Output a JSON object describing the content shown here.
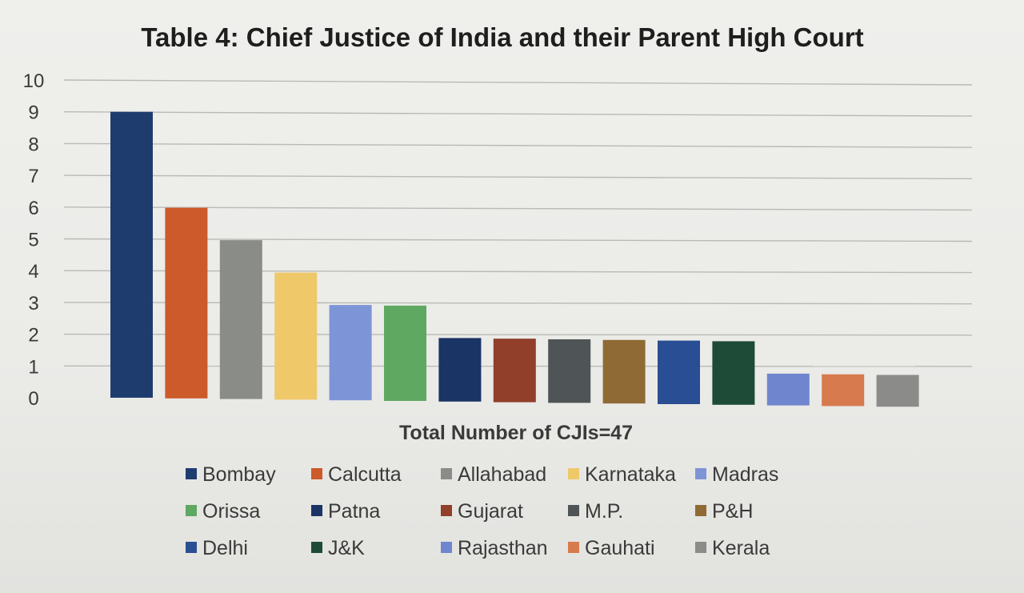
{
  "chart_data": {
    "type": "bar",
    "title": "Table 4: Chief Justice of India and their Parent High Court",
    "xlabel": "Total Number of CJIs=47",
    "ylabel": "",
    "ylim": [
      0,
      10
    ],
    "yticks": [
      "0",
      "1",
      "2",
      "3",
      "4",
      "5",
      "6",
      "7",
      "8",
      "9",
      "10"
    ],
    "grid": true,
    "legend_position": "bottom",
    "series": [
      {
        "name": "Bombay",
        "value": 9,
        "color": "#1f3c6e"
      },
      {
        "name": "Calcutta",
        "value": 6,
        "color": "#cc5a2a"
      },
      {
        "name": "Allahabad",
        "value": 5,
        "color": "#8a8c88"
      },
      {
        "name": "Karnataka",
        "value": 4,
        "color": "#efc86a"
      },
      {
        "name": "Madras",
        "value": 3,
        "color": "#7d95d6"
      },
      {
        "name": "Orissa",
        "value": 3,
        "color": "#5ea861"
      },
      {
        "name": "Patna",
        "value": 2,
        "color": "#1b3466"
      },
      {
        "name": "Gujarat",
        "value": 2,
        "color": "#913e2a"
      },
      {
        "name": "M.P.",
        "value": 2,
        "color": "#4f5456"
      },
      {
        "name": "P&H",
        "value": 2,
        "color": "#8f6a34"
      },
      {
        "name": "Delhi",
        "value": 2,
        "color": "#2a4e93"
      },
      {
        "name": "J&K",
        "value": 2,
        "color": "#1e4b37"
      },
      {
        "name": "Rajasthan",
        "value": 1,
        "color": "#6f86cf"
      },
      {
        "name": "Gauhati",
        "value": 1,
        "color": "#d77a4d"
      },
      {
        "name": "Kerala",
        "value": 1,
        "color": "#8b8c8a"
      }
    ]
  }
}
